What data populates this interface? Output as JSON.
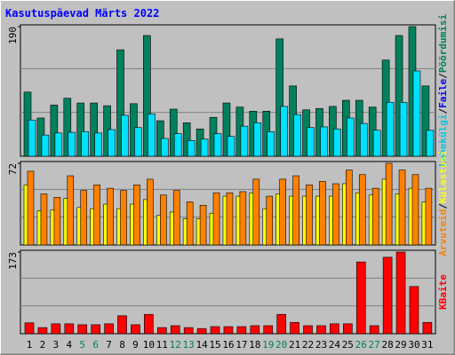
{
  "chart_data": [
    {
      "type": "bar",
      "title": "Kasutuspäevad Märts 2022",
      "right_labels": [
        "Lehekülgi",
        "/",
        "Faile",
        "/",
        "Pöördumisi"
      ],
      "right_label_colors": [
        "#00c8e0",
        "#000000",
        "#0000ff",
        "#000000",
        "#00805c"
      ],
      "ylim": [
        0,
        190
      ],
      "yticks": [
        190
      ],
      "series": [
        {
          "name": "Pöördumisi",
          "color": "#00805c",
          "values": [
            94,
            56,
            75,
            85,
            78,
            78,
            74,
            156,
            77,
            177,
            52,
            69,
            49,
            40,
            57,
            78,
            72,
            66,
            66,
            172,
            103,
            68,
            70,
            73,
            82,
            82,
            72,
            141,
            177,
            190,
            103
          ]
        },
        {
          "name": "Faile",
          "color": "#00e0ff",
          "values": [
            53,
            31,
            34,
            35,
            36,
            34,
            39,
            60,
            42,
            62,
            26,
            33,
            23,
            25,
            33,
            29,
            44,
            49,
            36,
            73,
            61,
            42,
            43,
            40,
            56,
            48,
            38,
            79,
            79,
            125,
            38
          ]
        }
      ]
    },
    {
      "type": "bar",
      "right_labels": [
        "Arvuteid",
        "/",
        "Külastusi"
      ],
      "right_label_colors": [
        "#ff8000",
        "#000000",
        "#ffff00"
      ],
      "ylim": [
        0,
        72
      ],
      "yticks": [
        72
      ],
      "series": [
        {
          "name": "Külastusi",
          "color": "#ffff00",
          "values": [
            53,
            30,
            31,
            41,
            33,
            32,
            36,
            32,
            36,
            40,
            26,
            29,
            23,
            23,
            28,
            43,
            43,
            46,
            32,
            45,
            43,
            43,
            43,
            43,
            54,
            46,
            44,
            58,
            45,
            50,
            38
          ]
        },
        {
          "name": "Arvuteid",
          "color": "#ff8000",
          "values": [
            65,
            45,
            42,
            61,
            48,
            53,
            50,
            48,
            53,
            58,
            44,
            48,
            38,
            35,
            46,
            46,
            47,
            58,
            43,
            58,
            61,
            53,
            56,
            54,
            66,
            62,
            50,
            72,
            66,
            62,
            50
          ]
        }
      ]
    },
    {
      "type": "bar",
      "right_labels": [
        "KBaite"
      ],
      "right_label_colors": [
        "#ff0000"
      ],
      "ylim": [
        0,
        173
      ],
      "yticks": [
        173
      ],
      "categories": [
        "1",
        "2",
        "3",
        "4",
        "5",
        "6",
        "7",
        "8",
        "9",
        "10",
        "11",
        "12",
        "13",
        "14",
        "15",
        "16",
        "17",
        "18",
        "19",
        "20",
        "21",
        "22",
        "23",
        "24",
        "25",
        "26",
        "27",
        "28",
        "29",
        "30",
        "31"
      ],
      "category_colors": [
        "#000000",
        "#000000",
        "#000000",
        "#000000",
        "#00805c",
        "#00805c",
        "#000000",
        "#000000",
        "#000000",
        "#000000",
        "#000000",
        "#00805c",
        "#00805c",
        "#000000",
        "#000000",
        "#000000",
        "#000000",
        "#000000",
        "#00805c",
        "#00805c",
        "#000000",
        "#000000",
        "#000000",
        "#000000",
        "#000000",
        "#00805c",
        "#00805c",
        "#000000",
        "#000000",
        "#000000",
        "#000000"
      ],
      "series": [
        {
          "name": "KBaite",
          "color": "#ff0000",
          "values": [
            23,
            13,
            21,
            21,
            19,
            19,
            21,
            38,
            19,
            41,
            13,
            17,
            13,
            11,
            15,
            15,
            15,
            17,
            17,
            41,
            24,
            17,
            17,
            21,
            21,
            152,
            17,
            162,
            173,
            100,
            24
          ]
        }
      ]
    }
  ]
}
